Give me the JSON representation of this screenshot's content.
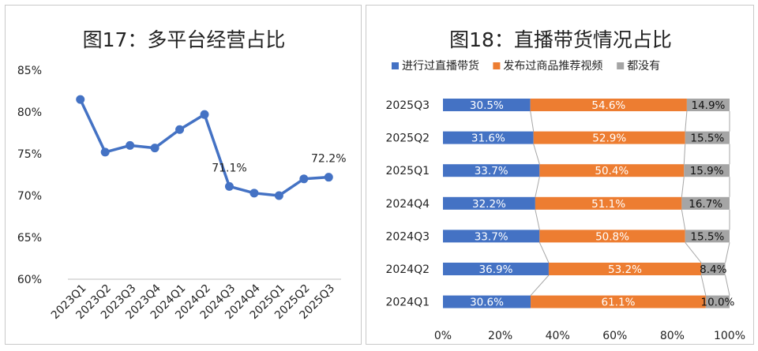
{
  "chart_data": [
    {
      "type": "line",
      "title": "图17：多平台经营占比",
      "categories": [
        "2023Q1",
        "2023Q2",
        "2023Q3",
        "2023Q4",
        "2024Q1",
        "2024Q2",
        "2024Q3",
        "2024Q4",
        "2025Q1",
        "2025Q2",
        "2025Q3"
      ],
      "values": [
        81.5,
        75.2,
        76.0,
        75.7,
        77.9,
        79.7,
        71.1,
        70.3,
        70.0,
        72.0,
        72.2
      ],
      "data_labels": [
        {
          "category": "2024Q3",
          "text": "71.1%"
        },
        {
          "category": "2025Q3",
          "text": "72.2%"
        }
      ],
      "y_ticks": [
        "60%",
        "65%",
        "70%",
        "75%",
        "80%",
        "85%"
      ],
      "ylim": [
        60,
        85
      ],
      "color": "#4472C4"
    },
    {
      "type": "bar",
      "orientation": "horizontal",
      "stacked": "percent",
      "title": "图18：直播带货情况占比",
      "categories": [
        "2025Q3",
        "2025Q2",
        "2025Q1",
        "2024Q4",
        "2024Q3",
        "2024Q2",
        "2024Q1"
      ],
      "series": [
        {
          "name": "进行过直播带货",
          "color": "#4472C4",
          "values": [
            30.5,
            31.6,
            33.7,
            32.2,
            33.7,
            36.9,
            30.6
          ],
          "labels": [
            "30.5%",
            "31.6%",
            "33.7%",
            "32.2%",
            "33.7%",
            "36.9%",
            "30.6%"
          ]
        },
        {
          "name": "发布过商品推荐视频",
          "color": "#ED7D31",
          "values": [
            54.6,
            52.9,
            50.4,
            51.1,
            50.8,
            53.2,
            61.1
          ],
          "labels": [
            "54.6%",
            "52.9%",
            "50.4%",
            "51.1%",
            "50.8%",
            "53.2%",
            "61.1%"
          ]
        },
        {
          "name": "都没有",
          "color": "#A5A5A5",
          "values": [
            14.9,
            15.5,
            15.9,
            16.7,
            15.5,
            8.4,
            10.0
          ],
          "labels": [
            "14.9%",
            "15.5%",
            "15.9%",
            "16.7%",
            "15.5%",
            "8.4%",
            "10.0%"
          ]
        }
      ],
      "x_ticks": [
        "0%",
        "20%",
        "40%",
        "60%",
        "80%",
        "100%"
      ],
      "xlim": [
        0,
        100
      ]
    }
  ]
}
